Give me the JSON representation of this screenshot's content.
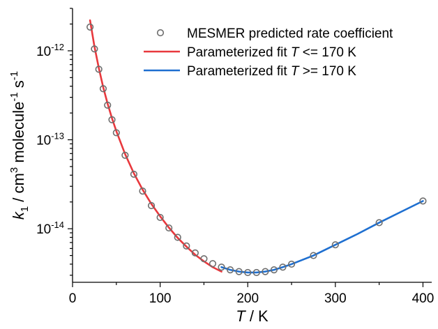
{
  "chart_data": {
    "type": "scatter",
    "xlabel": {
      "symbol": "T",
      "unit": "K"
    },
    "ylabel": {
      "symbol": "k",
      "subscript": "1",
      "unit_prefix": "cm",
      "unit_exp1": "3",
      "unit_mid": "molecule",
      "unit_exp2": "-1",
      "unit_end": "s",
      "unit_exp3": "-1"
    },
    "xlim": [
      0,
      410
    ],
    "ylim": [
      2.5e-15,
      3e-12
    ],
    "yscale": "log",
    "x_ticks": [
      "0",
      "100",
      "200",
      "300",
      "400"
    ],
    "y_ticks": [
      {
        "base": "10",
        "exp": "-12"
      },
      {
        "base": "10",
        "exp": "-13"
      },
      {
        "base": "10",
        "exp": "-14"
      }
    ],
    "legend_position": "top-right",
    "series": [
      {
        "name": "MESMER predicted rate coefficient",
        "kind": "marker",
        "color": "#6e6e6e",
        "x": [
          20,
          25,
          30,
          35,
          40,
          45,
          50,
          60,
          70,
          80,
          90,
          100,
          110,
          120,
          130,
          140,
          150,
          160,
          170,
          180,
          190,
          200,
          210,
          220,
          230,
          240,
          250,
          275,
          300,
          350,
          400
        ],
        "y": [
          1.85e-12,
          1.05e-12,
          6.2e-13,
          3.75e-13,
          2.45e-13,
          1.68e-13,
          1.2e-13,
          6.7e-14,
          4.1e-14,
          2.65e-14,
          1.82e-14,
          1.34e-14,
          1.02e-14,
          8e-15,
          6.4e-15,
          5.35e-15,
          4.6e-15,
          4.05e-15,
          3.7e-15,
          3.45e-15,
          3.3e-15,
          3.22e-15,
          3.22e-15,
          3.3e-15,
          3.45e-15,
          3.7e-15,
          4e-15,
          5e-15,
          6.6e-15,
          1.17e-14,
          2.05e-14
        ]
      },
      {
        "name": "Parameterized fit T <= 170 K",
        "kind": "line",
        "color": "#e8383d",
        "x": [
          20,
          25,
          30,
          35,
          40,
          45,
          50,
          60,
          70,
          80,
          90,
          100,
          110,
          120,
          130,
          140,
          150,
          160,
          170
        ],
        "y": [
          2.2e-12,
          1.12e-12,
          6.4e-13,
          3.9e-13,
          2.55e-13,
          1.75e-13,
          1.25e-13,
          6.9e-14,
          4.2e-14,
          2.75e-14,
          1.9e-14,
          1.38e-14,
          1.03e-14,
          7.9e-15,
          6.3e-15,
          5.1e-15,
          4.3e-15,
          3.7e-15,
          3.3e-15
        ]
      },
      {
        "name": "Parameterized fit T >= 170 K",
        "kind": "line",
        "color": "#1e6fd0",
        "x": [
          170,
          180,
          190,
          200,
          210,
          220,
          230,
          240,
          250,
          275,
          300,
          325,
          350,
          375,
          400
        ],
        "y": [
          3.7e-15,
          3.45e-15,
          3.3e-15,
          3.22e-15,
          3.22e-15,
          3.3e-15,
          3.45e-15,
          3.7e-15,
          4e-15,
          5e-15,
          6.6e-15,
          8.7e-15,
          1.17e-14,
          1.55e-14,
          2.05e-14
        ]
      }
    ],
    "legend": [
      {
        "label": "MESMER predicted rate coefficient",
        "italic_part": "",
        "suffix": ""
      },
      {
        "label": "Parameterized fit ",
        "italic_part": "T",
        "suffix": " <= 170 K"
      },
      {
        "label": "Parameterized fit ",
        "italic_part": "T",
        "suffix": " >= 170 K"
      }
    ]
  }
}
